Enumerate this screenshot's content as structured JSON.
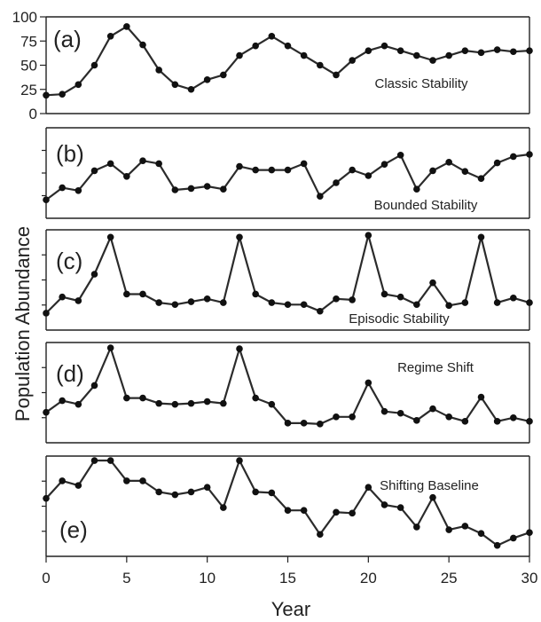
{
  "chart_data": {
    "type": "line",
    "layout": "stacked-panels",
    "xlabel": "Year",
    "ylabel": "Population Abundance",
    "xlim": [
      0,
      30
    ],
    "xticks": [
      0,
      5,
      10,
      15,
      20,
      25,
      30
    ],
    "x": [
      0,
      1,
      2,
      3,
      4,
      5,
      6,
      7,
      8,
      9,
      10,
      11,
      12,
      13,
      14,
      15,
      16,
      17,
      18,
      19,
      20,
      21,
      22,
      23,
      24,
      25,
      26,
      27,
      28,
      29,
      30
    ],
    "panels": [
      {
        "letter": "(a)",
        "title": "Classic Stability",
        "ylim": [
          0,
          100
        ],
        "yticks": [
          0,
          25,
          50,
          75,
          100
        ],
        "values": [
          19,
          20,
          30,
          50,
          80,
          90,
          71,
          45,
          30,
          25,
          35,
          40,
          60,
          70,
          80,
          70,
          60,
          50,
          40,
          55,
          65,
          70,
          65,
          60,
          55,
          60,
          65,
          63,
          66,
          64,
          65
        ]
      },
      {
        "letter": "(b)",
        "title": "Bounded Stability",
        "ylim": [
          0,
          100
        ],
        "yticks": [],
        "values": [
          16,
          33,
          29,
          57,
          67,
          49,
          71,
          67,
          30,
          32,
          35,
          31,
          63,
          58,
          58,
          58,
          67,
          21,
          40,
          58,
          50,
          66,
          79,
          31,
          57,
          69,
          56,
          46,
          68,
          77,
          80
        ]
      },
      {
        "letter": "(c)",
        "title": "Episodic Stability",
        "ylim": [
          0,
          100
        ],
        "yticks": [],
        "values": [
          16,
          33,
          29,
          57,
          96,
          36,
          36,
          27,
          25,
          28,
          31,
          27,
          96,
          36,
          27,
          25,
          25,
          18,
          31,
          30,
          98,
          36,
          33,
          25,
          48,
          24,
          27,
          96,
          27,
          32,
          27
        ]
      },
      {
        "letter": "(d)",
        "title": "Regime Shift",
        "ylim": [
          0,
          100
        ],
        "yticks": [],
        "values": [
          27,
          40,
          36,
          57,
          99,
          43,
          43,
          37,
          36,
          37,
          39,
          37,
          98,
          43,
          36,
          15,
          15,
          14,
          22,
          22,
          60,
          28,
          26,
          18,
          31,
          22,
          17,
          44,
          17,
          21,
          17
        ]
      },
      {
        "letter": "(e)",
        "title": "Shifting Baseline",
        "ylim": [
          0,
          100
        ],
        "yticks": [],
        "values": [
          58,
          77,
          72,
          99,
          99,
          77,
          77,
          65,
          62,
          65,
          70,
          48,
          99,
          65,
          64,
          45,
          45,
          19,
          43,
          42,
          70,
          51,
          48,
          27,
          59,
          24,
          28,
          20,
          7,
          15,
          21
        ]
      }
    ]
  }
}
